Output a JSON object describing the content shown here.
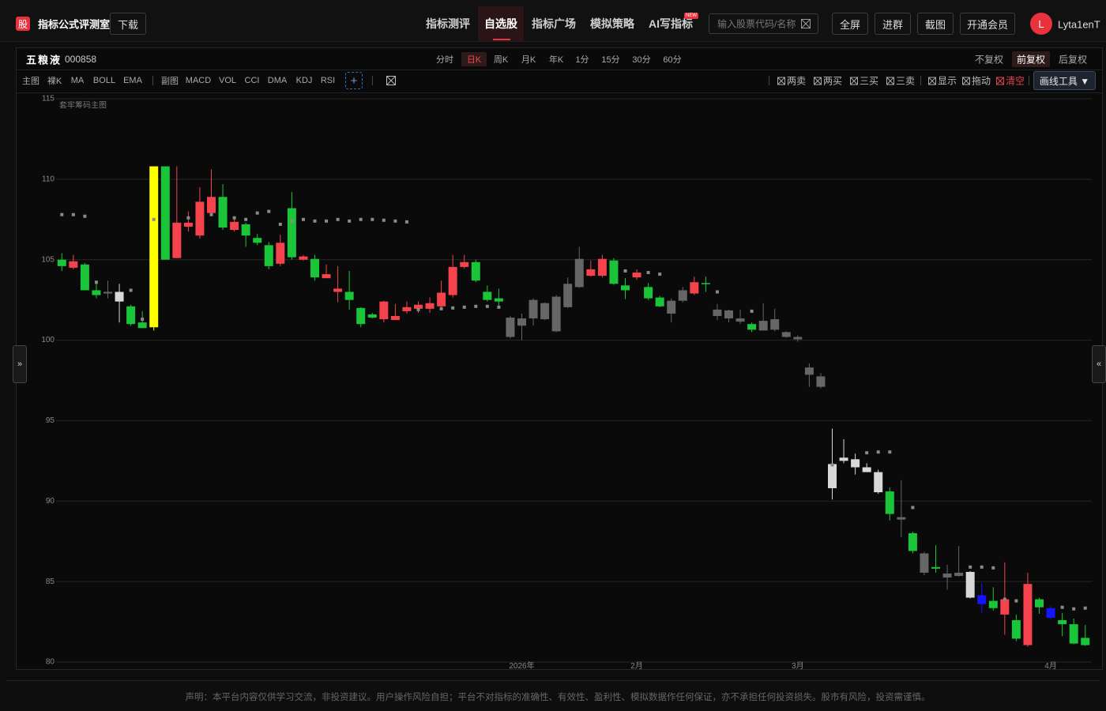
{
  "header": {
    "logo": "股",
    "title": "指标公式评测室",
    "download": "下载",
    "nav": [
      "指标测评",
      "自选股",
      "指标广场",
      "模拟策略",
      "AI写指标"
    ],
    "nav_badge": "NEW",
    "search_placeholder": "输入股票代码/名称",
    "buttons": [
      "全屏",
      "进群",
      "截图",
      "开通会员"
    ],
    "avatar": "L",
    "username": "Lyta1enT"
  },
  "stock": {
    "name": "五粮液",
    "code": "000858",
    "periods": [
      "分时",
      "日K",
      "周K",
      "月K",
      "年K",
      "1分",
      "15分",
      "30分",
      "60分"
    ],
    "adjust": [
      "不复权",
      "前复权",
      "后复权"
    ]
  },
  "toolbar": {
    "main_label": "主图",
    "main": [
      "裸K",
      "MA",
      "BOLL",
      "EMA"
    ],
    "sub_label": "副图",
    "sub": [
      "MACD",
      "VOL",
      "CCI",
      "DMA",
      "KDJ",
      "RSI"
    ],
    "add": "+",
    "signals": [
      "两卖",
      "两买",
      "三买",
      "三卖",
      "显示",
      "拖动",
      "清空"
    ],
    "draw_tool": "画线工具 ▼"
  },
  "side": {
    "left": "»",
    "right": "«"
  },
  "chart_data": {
    "type": "candlestick",
    "overlay_label": "套牢筹码主图",
    "ylim": [
      80,
      115
    ],
    "yticks": [
      80,
      85,
      90,
      95,
      100,
      105,
      110,
      115
    ],
    "grid": true,
    "categories": [
      null,
      null,
      null,
      null,
      null,
      null,
      null,
      null,
      null,
      null,
      null,
      null,
      null,
      null,
      null,
      null,
      null,
      null,
      null,
      null,
      null,
      null,
      null,
      null,
      null,
      null,
      null,
      null,
      null,
      null,
      null,
      null,
      null,
      null,
      null,
      null,
      null,
      null,
      null,
      null,
      "2026年",
      null,
      null,
      null,
      null,
      null,
      null,
      null,
      null,
      null,
      "2月",
      null,
      null,
      null,
      null,
      null,
      null,
      null,
      null,
      null,
      null,
      null,
      null,
      null,
      "3月",
      null,
      null,
      null,
      null,
      null,
      null,
      null,
      null,
      null,
      null,
      null,
      null,
      null,
      null,
      null,
      null,
      null,
      null,
      null,
      null,
      null,
      "4月",
      null,
      null,
      null
    ],
    "open": [
      105.0,
      104.5,
      104.7,
      103.1,
      103.0,
      103.0,
      102.1,
      101.1,
      100.8,
      110.8,
      105.1,
      107.05,
      106.5,
      107.9,
      108.9,
      106.85,
      107.2,
      106.35,
      105.9,
      104.75,
      108.2,
      105.0,
      105.05,
      103.85,
      103.0,
      103.0,
      102.0,
      101.6,
      101.3,
      101.25,
      101.8,
      101.95,
      101.95,
      102.1,
      102.8,
      104.55,
      104.85,
      103.0,
      102.6,
      101.4,
      101.35,
      102.5,
      102.3,
      102.7,
      103.5,
      105.05,
      104.0,
      104.0,
      104.95,
      103.4,
      103.9,
      103.3,
      102.65,
      102.45,
      103.1,
      102.9,
      103.55,
      101.9,
      101.85,
      101.35,
      101.0,
      101.2,
      101.3,
      100.5,
      100.2,
      98.3,
      97.75,
      92.3,
      92.7,
      92.6,
      92.1,
      91.8,
      90.6,
      89.0,
      88.0,
      86.75,
      85.9,
      85.5,
      85.55,
      85.6,
      84.15,
      83.8,
      82.95,
      82.6,
      81.05,
      83.9,
      83.35,
      82.6,
      82.35,
      81.5
    ],
    "high": [
      105.4,
      105.3,
      104.8,
      103.6,
      103.7,
      103.5,
      102.2,
      101.8,
      110.8,
      110.8,
      110.8,
      108.0,
      109.5,
      110.6,
      109.7,
      107.7,
      107.3,
      106.6,
      106.1,
      106.55,
      109.2,
      105.3,
      105.3,
      104.7,
      104.6,
      104.3,
      102.05,
      101.7,
      102.45,
      102.25,
      102.4,
      102.4,
      102.65,
      103.7,
      105.3,
      105.3,
      105.0,
      103.4,
      103.2,
      101.5,
      101.65,
      102.6,
      102.35,
      102.8,
      103.9,
      105.8,
      104.95,
      105.3,
      105.1,
      103.85,
      104.4,
      103.55,
      102.75,
      102.6,
      103.3,
      103.95,
      103.95,
      102.25,
      101.9,
      101.9,
      101.1,
      102.3,
      101.95,
      100.55,
      100.3,
      98.55,
      97.95,
      94.5,
      93.85,
      92.95,
      92.35,
      91.95,
      90.85,
      91.3,
      88.1,
      86.85,
      87.25,
      86.05,
      87.2,
      85.65,
      84.9,
      84.65,
      86.2,
      82.95,
      85.55,
      84.0,
      83.5,
      83.05,
      82.7,
      82.3
    ],
    "low": [
      104.3,
      104.4,
      103.1,
      102.6,
      102.6,
      101.1,
      100.9,
      100.75,
      100.6,
      105.0,
      105.1,
      106.75,
      106.3,
      107.8,
      106.85,
      106.75,
      105.8,
      105.9,
      104.4,
      104.6,
      105.0,
      104.95,
      103.7,
      103.85,
      102.35,
      101.9,
      100.8,
      101.35,
      101.1,
      101.25,
      101.65,
      101.7,
      101.7,
      101.9,
      102.65,
      104.45,
      103.6,
      102.4,
      102.15,
      100.1,
      100.0,
      100.9,
      101.25,
      100.5,
      102.0,
      103.25,
      103.95,
      103.9,
      103.45,
      102.55,
      103.75,
      102.5,
      102.05,
      101.1,
      102.35,
      102.8,
      103.0,
      101.25,
      101.1,
      101.0,
      100.5,
      100.6,
      100.55,
      100.15,
      99.9,
      97.1,
      97.0,
      90.1,
      92.35,
      91.65,
      91.8,
      90.45,
      88.8,
      87.75,
      86.75,
      85.4,
      85.55,
      84.5,
      85.3,
      83.95,
      83.05,
      83.2,
      81.7,
      81.3,
      80.95,
      83.0,
      82.65,
      81.6,
      81.1,
      81.0
    ],
    "close": [
      104.6,
      104.9,
      103.1,
      102.8,
      102.9,
      102.4,
      101.0,
      100.75,
      110.8,
      105.0,
      107.3,
      107.3,
      108.6,
      108.9,
      107.0,
      107.35,
      106.5,
      106.05,
      104.6,
      106.05,
      105.15,
      105.2,
      103.9,
      104.1,
      103.2,
      102.5,
      101.0,
      101.4,
      102.4,
      101.5,
      102.05,
      102.2,
      102.3,
      102.95,
      104.55,
      104.85,
      103.7,
      102.5,
      102.4,
      100.2,
      100.9,
      101.35,
      101.3,
      100.55,
      102.05,
      103.3,
      104.4,
      105.05,
      103.5,
      103.1,
      104.2,
      102.6,
      102.1,
      101.65,
      102.45,
      103.6,
      103.5,
      101.5,
      101.35,
      101.15,
      100.65,
      100.6,
      100.65,
      100.2,
      100.05,
      97.85,
      97.1,
      90.8,
      92.5,
      92.1,
      91.8,
      90.55,
      89.2,
      88.85,
      86.9,
      85.55,
      85.8,
      85.25,
      85.35,
      84.0,
      83.6,
      83.35,
      83.9,
      81.45,
      84.85,
      83.4,
      82.75,
      82.35,
      81.15,
      81.05
    ],
    "colors": [
      "#1bc53a",
      "#f5434d",
      "#1bc53a",
      "#1bc53a",
      "#666666",
      "#d8d8d8",
      "#1bc53a",
      "#1bc53a",
      "#ffff00",
      "#1bc53a",
      "#f5434d",
      "#f5434d",
      "#f5434d",
      "#f5434d",
      "#1bc53a",
      "#f5434d",
      "#1bc53a",
      "#1bc53a",
      "#1bc53a",
      "#f5434d",
      "#1bc53a",
      "#f5434d",
      "#1bc53a",
      "#f5434d",
      "#f5434d",
      "#1bc53a",
      "#1bc53a",
      "#1bc53a",
      "#f5434d",
      "#f5434d",
      "#f5434d",
      "#f5434d",
      "#f5434d",
      "#f5434d",
      "#f5434d",
      "#f5434d",
      "#1bc53a",
      "#1bc53a",
      "#1bc53a",
      "#666666",
      "#666666",
      "#666666",
      "#666666",
      "#666666",
      "#666666",
      "#666666",
      "#f5434d",
      "#f5434d",
      "#1bc53a",
      "#1bc53a",
      "#f5434d",
      "#1bc53a",
      "#1bc53a",
      "#666666",
      "#666666",
      "#f5434d",
      "#1bc53a",
      "#666666",
      "#666666",
      "#666666",
      "#1bc53a",
      "#666666",
      "#666666",
      "#666666",
      "#666666",
      "#666666",
      "#666666",
      "#d8d8d8",
      "#d8d8d8",
      "#d8d8d8",
      "#d8d8d8",
      "#d8d8d8",
      "#1bc53a",
      "#666666",
      "#1bc53a",
      "#666666",
      "#1bc53a",
      "#666666",
      "#666666",
      "#d8d8d8",
      "#1414ff",
      "#1bc53a",
      "#f5434d",
      "#1bc53a",
      "#f5434d",
      "#1bc53a",
      "#1414ff",
      "#1bc53a",
      "#1bc53a",
      "#1bc53a"
    ],
    "markers": [
      107.8,
      107.8,
      107.7,
      103.6,
      null,
      null,
      103.1,
      101.3,
      107.5,
      null,
      null,
      107.6,
      null,
      107.8,
      null,
      107.6,
      107.5,
      107.9,
      108.0,
      107.2,
      107.4,
      107.5,
      107.4,
      107.4,
      107.5,
      107.4,
      107.5,
      107.5,
      107.45,
      107.4,
      107.35,
      101.9,
      null,
      101.95,
      102.0,
      102.05,
      102.1,
      102.1,
      102.05,
      null,
      null,
      null,
      null,
      null,
      null,
      null,
      null,
      null,
      null,
      104.3,
      null,
      104.2,
      104.1,
      null,
      null,
      null,
      null,
      103.0,
      null,
      null,
      101.8,
      null,
      null,
      null,
      null,
      null,
      null,
      92.25,
      null,
      null,
      93.0,
      93.05,
      93.05,
      null,
      89.6,
      null,
      null,
      null,
      null,
      85.9,
      85.9,
      85.85,
      83.9,
      83.8,
      null,
      null,
      null,
      83.4,
      83.3,
      83.35
    ],
    "marker_color": "#8a8a8a"
  },
  "footer": {
    "disclaimer": "声明：本平台内容仅供学习交流，非投资建议。用户操作风险自担；平台不对指标的准确性、有效性、盈利性、模拟数据作任何保证，亦不承担任何投资损失。股市有风险，投资需谨慎。"
  }
}
